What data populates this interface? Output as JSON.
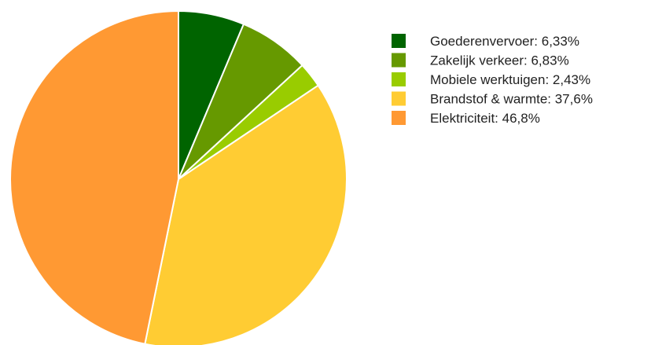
{
  "chart_data": {
    "type": "pie",
    "title": "",
    "start_angle_deg": 0,
    "direction": "clockwise",
    "legend_position": "right",
    "slices": [
      {
        "label": "Goederenvervoer: 6,33%",
        "name": "Goederenvervoer",
        "value": 6.33,
        "color": "#006400"
      },
      {
        "label": "Zakelijk verkeer: 6,83%",
        "name": "Zakelijk verkeer",
        "value": 6.83,
        "color": "#669900"
      },
      {
        "label": "Mobiele werktuigen: 2,43%",
        "name": "Mobiele werktuigen",
        "value": 2.43,
        "color": "#99cc00"
      },
      {
        "label": "Brandstof & warmte: 37,6%",
        "name": "Brandstof & warmte",
        "value": 37.6,
        "color": "#ffcc33"
      },
      {
        "label": "Elektriciteit: 46,8%",
        "name": "Elektriciteit",
        "value": 46.8,
        "color": "#ff9933"
      }
    ]
  }
}
